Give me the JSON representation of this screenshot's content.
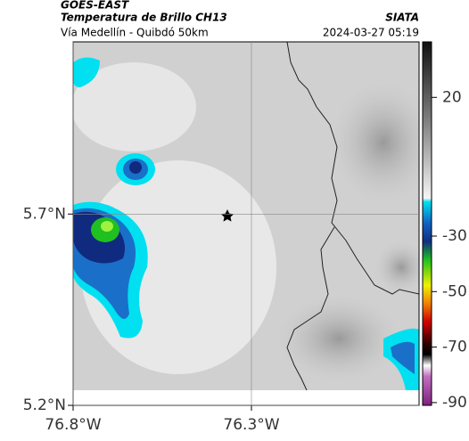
{
  "header": {
    "satellite": "GOES-EAST",
    "title": "Temperatura de Brillo CH13",
    "subtitle": "Vía Medellín - Quibdó 50km",
    "source": "SIATA",
    "timestamp": "2024-03-27 05:19"
  },
  "map": {
    "xlim": [
      -76.8,
      -75.83
    ],
    "ylim": [
      5.2,
      6.15
    ],
    "xticks": [
      {
        "value": -76.8,
        "label": "76.8°W"
      },
      {
        "value": -76.3,
        "label": "76.3°W"
      }
    ],
    "yticks": [
      {
        "value": 5.2,
        "label": "5.2°N"
      },
      {
        "value": 5.7,
        "label": "5.7°N"
      }
    ]
  },
  "colorbar": {
    "lim": [
      -91,
      40
    ],
    "ticks": [
      20,
      -30,
      -50,
      -70,
      -90
    ]
  }
}
